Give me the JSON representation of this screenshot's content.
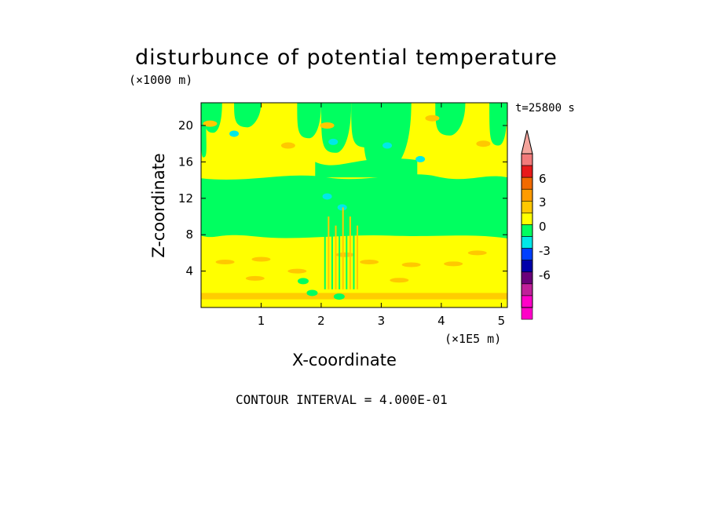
{
  "chart_data": {
    "type": "heatmap",
    "title": "disturbunce of potential temperature",
    "xlabel": "X-coordinate",
    "ylabel": "Z-coordinate",
    "x_unit": "(×1E5 m)",
    "y_unit": "(×1000 m)",
    "time_label": "t=25800 s",
    "contour_interval_label": "CONTOUR INTERVAL = 4.000E-01",
    "xlim": [
      0,
      5.1
    ],
    "ylim": [
      0,
      22.5
    ],
    "x_ticks": [
      "1",
      "2",
      "3",
      "4",
      "5"
    ],
    "y_ticks": [
      "4",
      "8",
      "12",
      "16",
      "20"
    ],
    "colorbar": {
      "tick_labels": [
        "6",
        "3",
        "0",
        "-3",
        "-6"
      ],
      "colors": [
        "#f4a49c",
        "#f27a7a",
        "#e81a1a",
        "#f26a00",
        "#ff9b00",
        "#ffc800",
        "#ffff00",
        "#00ff60",
        "#00e8e8",
        "#0040ff",
        "#0000aa",
        "#6a007a",
        "#c0209a",
        "#ff00c8"
      ]
    },
    "bands": [
      {
        "z_from": 0,
        "z_to": 2.5,
        "level": "0"
      },
      {
        "z_from": 2.5,
        "z_to": 7.5,
        "level": "0 to 0.4"
      },
      {
        "z_from": 7.5,
        "z_to": 14,
        "level": "-0.4 to 0"
      },
      {
        "z_from": 14,
        "z_to": 19,
        "level": "0 to 0.4"
      },
      {
        "z_from": 19,
        "z_to": 22.5,
        "level": "mixed -0.4 to 0.4"
      }
    ],
    "grid": false,
    "legend": "colorbar-right"
  }
}
